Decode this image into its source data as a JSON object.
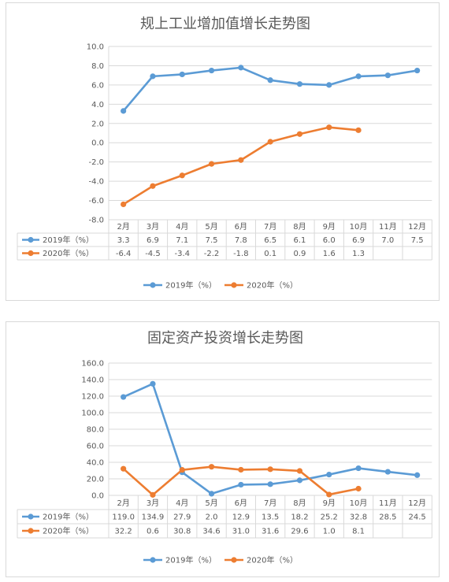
{
  "chart_data": [
    {
      "type": "line",
      "title": "规上工业增加值增长走势图",
      "categories": [
        "2月",
        "3月",
        "4月",
        "5月",
        "6月",
        "7月",
        "8月",
        "9月",
        "10月",
        "11月",
        "12月"
      ],
      "ylim": [
        -8.0,
        10.0
      ],
      "yticks": [
        -8.0,
        -6.0,
        -4.0,
        -2.0,
        0.0,
        2.0,
        4.0,
        6.0,
        8.0,
        10.0
      ],
      "ytick_labels": [
        "-8.0",
        "-6.0",
        "-4.0",
        "-2.0",
        "0.0",
        "2.0",
        "4.0",
        "6.0",
        "8.0",
        "10.0"
      ],
      "grid": true,
      "legend_position": "bottom",
      "series": [
        {
          "name": "2019年（%）",
          "color": "#5b9bd5",
          "values": [
            3.3,
            6.9,
            7.1,
            7.5,
            7.8,
            6.5,
            6.1,
            6.0,
            6.9,
            7.0,
            7.5
          ],
          "labels": [
            "3.3",
            "6.9",
            "7.1",
            "7.5",
            "7.8",
            "6.5",
            "6.1",
            "6.0",
            "6.9",
            "7.0",
            "7.5"
          ]
        },
        {
          "name": "2020年（%）",
          "color": "#ed7d31",
          "values": [
            -6.4,
            -4.5,
            -3.4,
            -2.2,
            -1.8,
            0.1,
            0.9,
            1.6,
            1.3,
            null,
            null
          ],
          "labels": [
            "-6.4",
            "-4.5",
            "-3.4",
            "-2.2",
            "-1.8",
            "0.1",
            "0.9",
            "1.6",
            "1.3",
            "",
            ""
          ]
        }
      ]
    },
    {
      "type": "line",
      "title": "固定资产投资增长走势图",
      "categories": [
        "2月",
        "3月",
        "4月",
        "5月",
        "6月",
        "7月",
        "8月",
        "9月",
        "10月",
        "11月",
        "12月"
      ],
      "ylim": [
        0.0,
        160.0
      ],
      "yticks": [
        0,
        20,
        40,
        60,
        80,
        100,
        120,
        140,
        160
      ],
      "ytick_labels": [
        "0.0",
        "20.0",
        "40.0",
        "60.0",
        "80.0",
        "100.0",
        "120.0",
        "140.0",
        "160.0"
      ],
      "grid": true,
      "legend_position": "bottom",
      "series": [
        {
          "name": "2019年（%）",
          "color": "#5b9bd5",
          "values": [
            119.0,
            134.9,
            27.9,
            2.0,
            12.9,
            13.5,
            18.2,
            25.2,
            32.8,
            28.5,
            24.5
          ],
          "labels": [
            "119.0",
            "134.9",
            "27.9",
            "2.0",
            "12.9",
            "13.5",
            "18.2",
            "25.2",
            "32.8",
            "28.5",
            "24.5"
          ]
        },
        {
          "name": "2020年（%）",
          "color": "#ed7d31",
          "values": [
            32.2,
            0.6,
            30.8,
            34.6,
            31.0,
            31.6,
            29.6,
            1.0,
            8.1,
            null,
            null
          ],
          "labels": [
            "32.2",
            "0.6",
            "30.8",
            "34.6",
            "31.0",
            "31.6",
            "29.6",
            "1.0",
            "8.1",
            "",
            ""
          ]
        }
      ]
    }
  ]
}
